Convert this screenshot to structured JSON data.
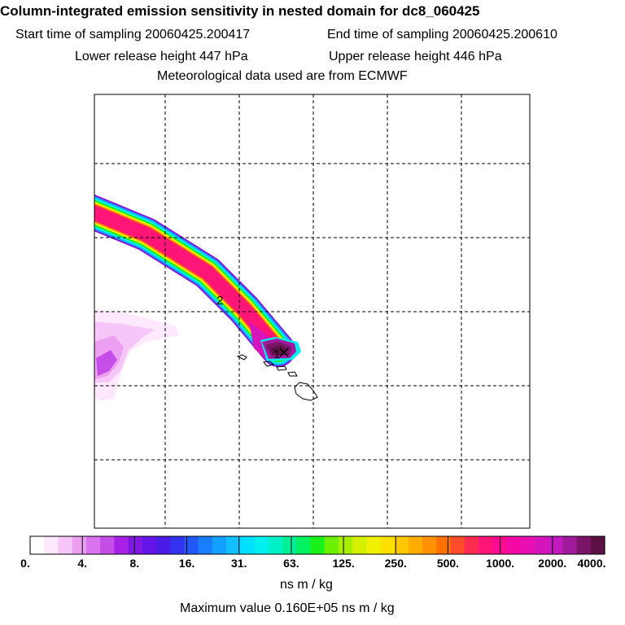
{
  "header": {
    "title": "Column-integrated emission sensitivity in nested domain for dc8_060425",
    "start_time": "Start time of sampling 20060425.200417",
    "end_time": "End time of sampling 20060425.200610",
    "lower_height": "Lower release height  447 hPa",
    "upper_height": "Upper release height  446 hPa",
    "met_data": "Meteorological data used are from ECMWF"
  },
  "map": {
    "plume_label": "2",
    "marker_label": "1"
  },
  "legend": {
    "tick_labels": [
      "0.",
      "4.",
      "8.",
      "16.",
      "31.",
      "63.",
      "125.",
      "250.",
      "500.",
      "1000.",
      "2000.",
      "4000."
    ],
    "colors": [
      "#ffffff",
      "#fde8fd",
      "#f6c6f8",
      "#eda0f2",
      "#d874ee",
      "#c64ee8",
      "#a722e6",
      "#8216e2",
      "#6414e6",
      "#4a1ae6",
      "#3232f0",
      "#2258f8",
      "#1a7cff",
      "#14a0ff",
      "#10c0ff",
      "#00e0ff",
      "#00f0f0",
      "#00f0c8",
      "#00f09a",
      "#00f060",
      "#1af01a",
      "#6af000",
      "#a8f000",
      "#d4f000",
      "#f0f000",
      "#fde000",
      "#ffc800",
      "#ffae00",
      "#ff9000",
      "#ff7000",
      "#ff4c2a",
      "#ff2a50",
      "#ff1478",
      "#ff0a90",
      "#f40aa2",
      "#e810b2",
      "#d614bc",
      "#c21ac0",
      "#a01a9c",
      "#7a1468",
      "#5c1044"
    ],
    "units": "ns m / kg",
    "max_value": "Maximum value  0.160E+05 ns m / kg"
  }
}
